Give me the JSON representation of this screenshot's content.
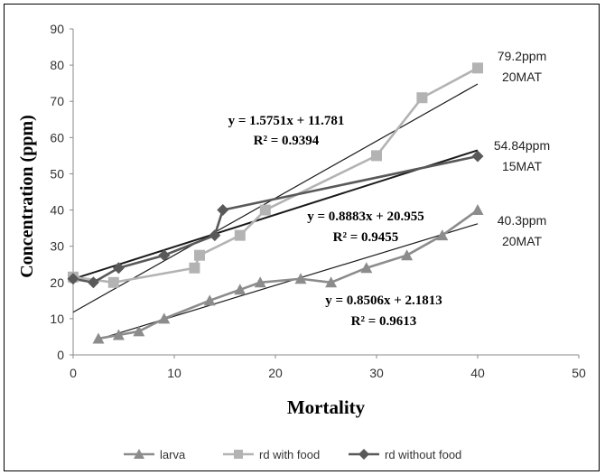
{
  "chart_data": {
    "type": "scatter",
    "title": "",
    "xlabel": "Mortality",
    "ylabel": "Concentration (ppm)",
    "xlim": [
      0,
      50
    ],
    "ylim": [
      0,
      90
    ],
    "xticks": [
      "0",
      "10",
      "20",
      "30",
      "40",
      "50"
    ],
    "yticks": [
      "0",
      "10",
      "20",
      "30",
      "40",
      "50",
      "60",
      "70",
      "80",
      "90"
    ],
    "grid": false,
    "legend_position": "bottom",
    "series": [
      {
        "name": "larva",
        "color": "#8c8c8c",
        "marker": "triangle",
        "points": [
          [
            2.5,
            4.5
          ],
          [
            4.5,
            5.5
          ],
          [
            6.5,
            6.5
          ],
          [
            9,
            10
          ],
          [
            13.5,
            15
          ],
          [
            16.5,
            18
          ],
          [
            18.5,
            20
          ],
          [
            22.5,
            21
          ],
          [
            25.5,
            20
          ],
          [
            29,
            24
          ],
          [
            33,
            27.5
          ],
          [
            36.5,
            33
          ],
          [
            40,
            40
          ]
        ],
        "trendline": {
          "slope": 0.8506,
          "intercept": 2.1813,
          "equation": "y = 0.8506x + 2.1813",
          "r2": "R² = 0.9613"
        }
      },
      {
        "name": "rd with food",
        "color": "#b3b3b3",
        "marker": "square",
        "points": [
          [
            0,
            21.5
          ],
          [
            4,
            20
          ],
          [
            12,
            24
          ],
          [
            12.5,
            27.5
          ],
          [
            16.5,
            33
          ],
          [
            19,
            40
          ],
          [
            30,
            55
          ],
          [
            34.5,
            71
          ],
          [
            40,
            79.2
          ]
        ],
        "trendline": {
          "slope": 1.5751,
          "intercept": 11.781,
          "equation": "y = 1.5751x + 11.781",
          "r2": "R² = 0.9394"
        }
      },
      {
        "name": "rd without food",
        "color": "#595959",
        "marker": "diamond",
        "points": [
          [
            0,
            21
          ],
          [
            2,
            20
          ],
          [
            4.5,
            24
          ],
          [
            9,
            27.5
          ],
          [
            14,
            33
          ],
          [
            14.8,
            40
          ],
          [
            40,
            54.84
          ]
        ],
        "trendline": {
          "slope": 0.8883,
          "intercept": 20.955,
          "equation": "y = 0.8883x + 20.955",
          "r2": "R² = 0.9455"
        }
      }
    ],
    "annotations": [
      {
        "line1": "79.2ppm",
        "line2": "20MAT"
      },
      {
        "line1": "54.84ppm",
        "line2": "15MAT"
      },
      {
        "line1": "40.3ppm",
        "line2": "20MAT"
      }
    ]
  }
}
